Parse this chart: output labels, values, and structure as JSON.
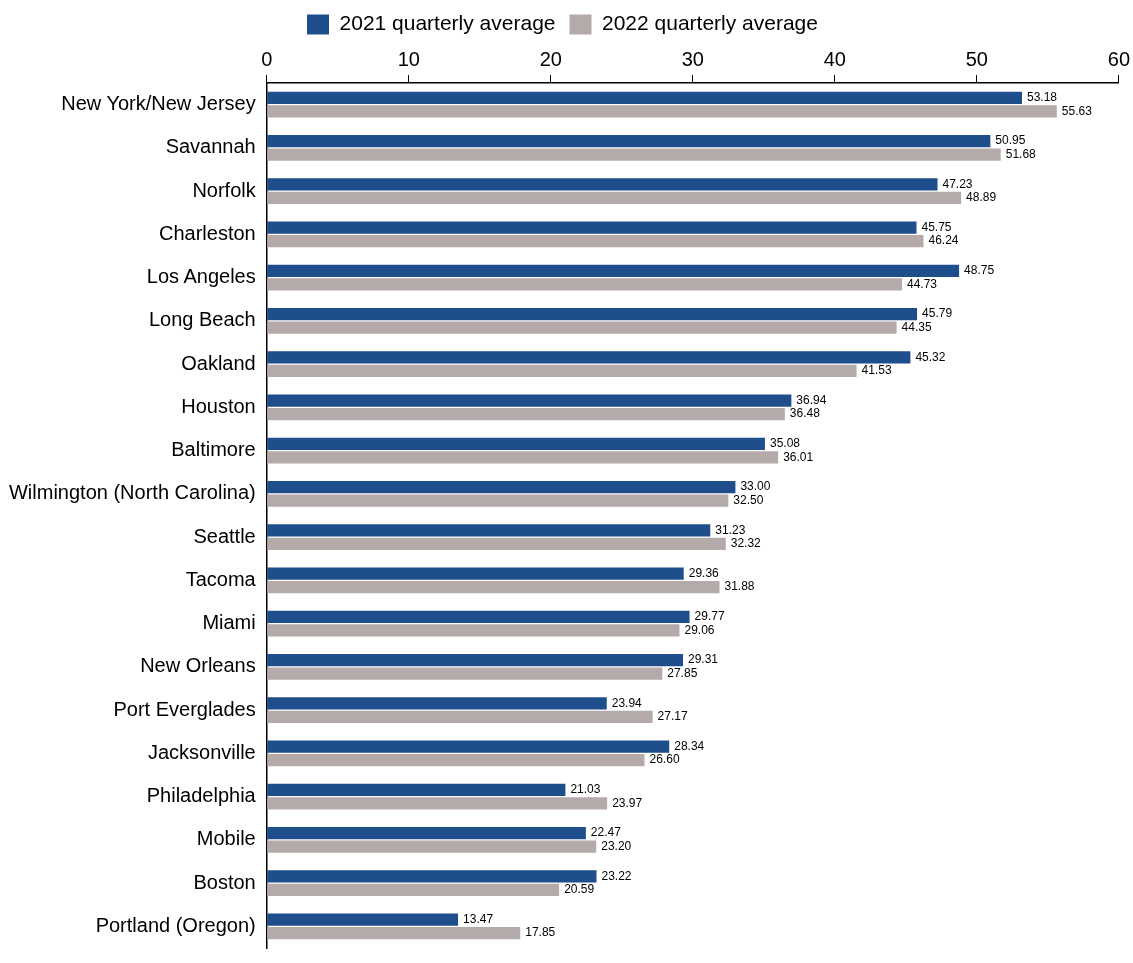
{
  "chart_data": {
    "type": "bar",
    "orientation": "horizontal",
    "categories": [
      "New York/New Jersey",
      "Savannah",
      "Norfolk",
      "Charleston",
      "Los Angeles",
      "Long Beach",
      "Oakland",
      "Houston",
      "Baltimore",
      "Wilmington (North Carolina)",
      "Seattle",
      "Tacoma",
      "Miami",
      "New Orleans",
      "Port Everglades",
      "Jacksonville",
      "Philadelphia",
      "Mobile",
      "Boston",
      "Portland (Oregon)"
    ],
    "series": [
      {
        "name": "2021 quarterly average",
        "color": "#1f4e8c",
        "values": [
          53.18,
          50.95,
          47.23,
          45.75,
          48.75,
          45.79,
          45.32,
          36.94,
          35.08,
          33.0,
          31.23,
          29.36,
          29.77,
          29.31,
          23.94,
          28.34,
          21.03,
          22.47,
          23.22,
          13.47
        ],
        "value_labels": [
          "53.18",
          "50.95",
          "47.23",
          "45.75",
          "48.75",
          "45.79",
          "45.32",
          "36.94",
          "35.08",
          "33.00",
          "31.23",
          "29.36",
          "29.77",
          "29.31",
          "23.94",
          "28.34",
          "21.03",
          "22.47",
          "23.22",
          "13.47"
        ]
      },
      {
        "name": "2022 quarterly average",
        "color": "#b5aaaa",
        "values": [
          55.63,
          51.68,
          48.89,
          46.24,
          44.73,
          44.35,
          41.53,
          36.48,
          36.01,
          32.5,
          32.32,
          31.88,
          29.06,
          27.85,
          27.17,
          26.6,
          23.97,
          23.2,
          20.59,
          17.85
        ],
        "value_labels": [
          "55.63",
          "51.68",
          "48.89",
          "46.24",
          "44.73",
          "44.35",
          "41.53",
          "36.48",
          "36.01",
          "32.50",
          "32.32",
          "31.88",
          "29.06",
          "27.85",
          "27.17",
          "26.60",
          "23.97",
          "23.20",
          "20.59",
          "17.85"
        ]
      }
    ],
    "xlim": [
      0,
      60
    ],
    "xticks": [
      0,
      10,
      20,
      30,
      40,
      50,
      60
    ],
    "grid": false,
    "legend": "top"
  }
}
